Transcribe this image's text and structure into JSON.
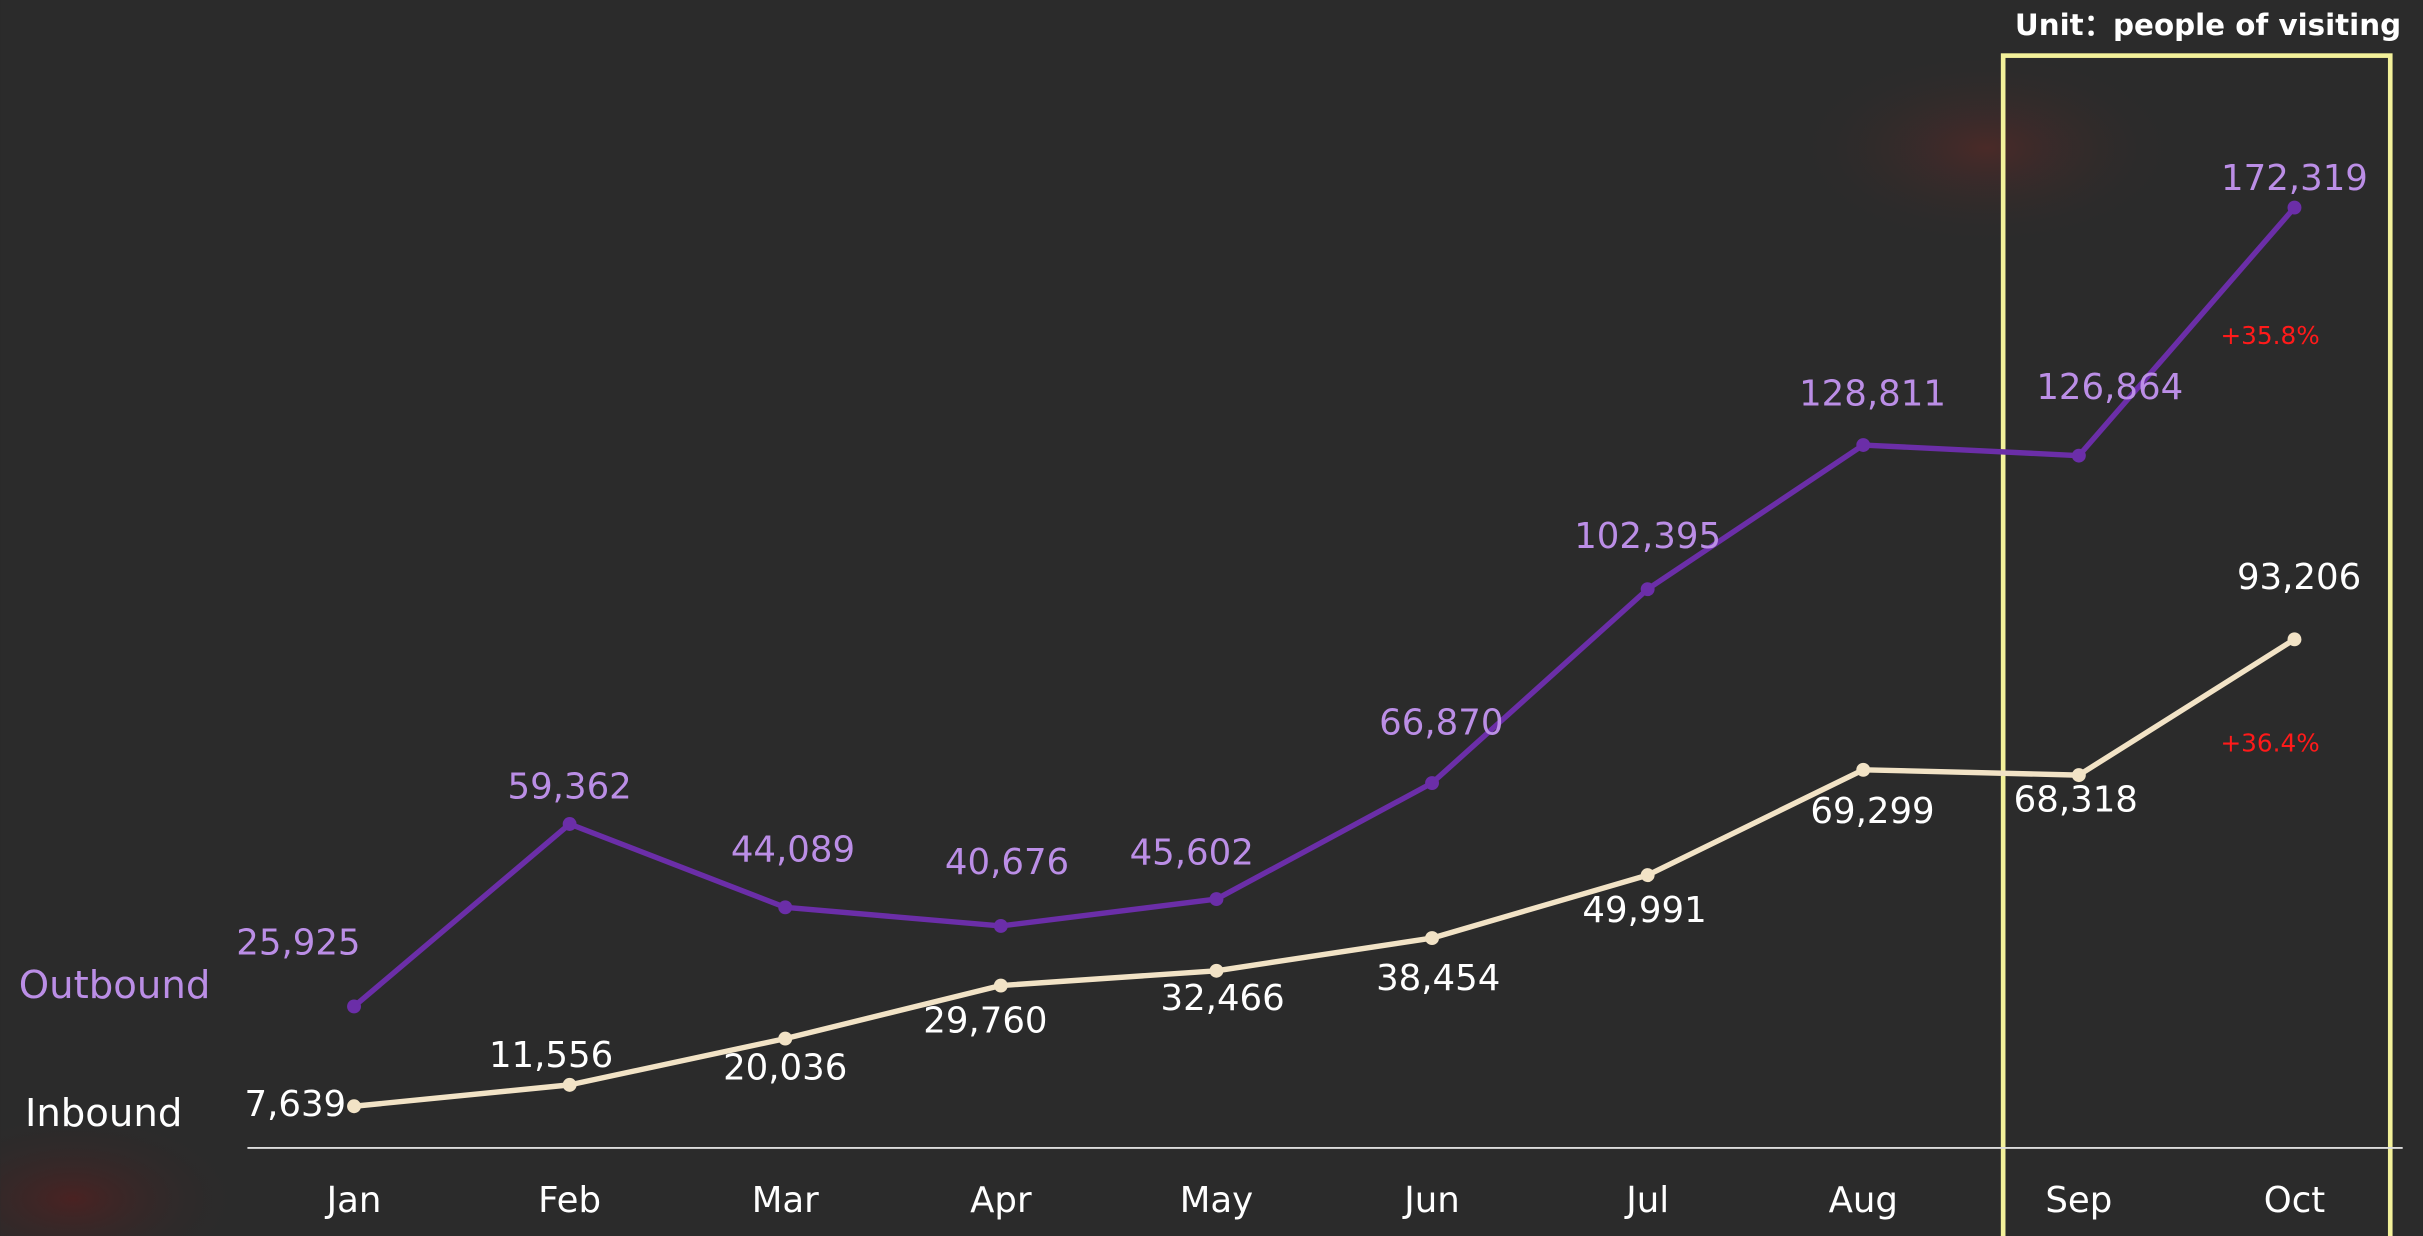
{
  "chart_data": {
    "type": "line",
    "unit_note": "Unit：people of visiting",
    "categories": [
      "Jan",
      "Feb",
      "Mar",
      "Apr",
      "May",
      "Jun",
      "Jul",
      "Aug",
      "Sep",
      "Oct"
    ],
    "ylim": [
      0,
      200000
    ],
    "highlight_categories": [
      "Sep",
      "Oct"
    ],
    "highlight_color": "#f3f19a",
    "series": [
      {
        "name": "Outbound",
        "color": "#6b2ea8",
        "label_color": "#bb8ee6",
        "values": [
          25925,
          59362,
          44089,
          40676,
          45602,
          66870,
          102395,
          128811,
          126864,
          172319
        ],
        "value_labels": [
          "25,925",
          "59,362",
          "44,089",
          "40,676",
          "45,602",
          "66,870",
          "102,395",
          "128,811",
          "126,864",
          "172,319"
        ],
        "change_label": "+35.8%"
      },
      {
        "name": "Inbound",
        "color": "#f2e3c6",
        "label_color": "#ffffff",
        "values": [
          7639,
          11556,
          20036,
          29760,
          32466,
          38454,
          49991,
          69299,
          68318,
          93206
        ],
        "value_labels": [
          "7,639",
          "11,556",
          "20,036",
          "29,760",
          "32,466",
          "38,454",
          "49,991",
          "69,299",
          "68,318",
          "93,206"
        ],
        "change_label": "+36.4%"
      }
    ],
    "change_color": "#ff1a1a"
  }
}
